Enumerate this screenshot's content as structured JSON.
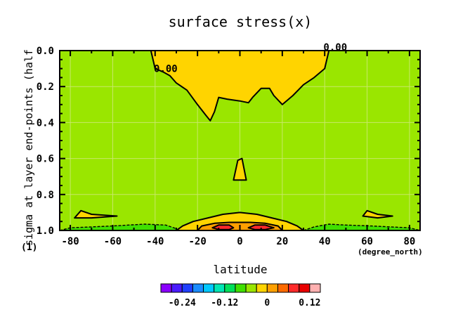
{
  "chart_data": {
    "type": "contour",
    "title": "surface stress(x)",
    "xlabel": "latitude",
    "x_units": "(degree_north)",
    "ylabel": "sigma at layer end-points (half",
    "y_units": "(1)",
    "xlim": [
      -85,
      85
    ],
    "ylim": [
      1.0,
      0.0
    ],
    "x_ticks": [
      -80,
      -60,
      -40,
      -20,
      0,
      20,
      40,
      60,
      80
    ],
    "y_ticks": [
      0.0,
      0.2,
      0.4,
      0.6,
      0.8,
      1.0
    ],
    "y_tick_labels": [
      "0.0",
      "0.2",
      "0.4",
      "0.6",
      "0.8",
      "1.0"
    ],
    "contour_labels": [
      {
        "text": "0.00",
        "x": -35,
        "y": 0.12
      },
      {
        "text": "0.00",
        "x": 45,
        "y": 0.0
      }
    ],
    "colorbar": {
      "tick_values": [
        -0.24,
        -0.12,
        0,
        0.12
      ],
      "tick_labels": [
        "-0.24",
        "-0.12",
        "0",
        "0.12"
      ],
      "colors": [
        "#8a00ff",
        "#4a1bff",
        "#2040ff",
        "#1a8cff",
        "#00c8ff",
        "#00e6b4",
        "#00e05a",
        "#40e000",
        "#9ae600",
        "#ffd400",
        "#ffa000",
        "#ff6a00",
        "#ff2a2a",
        "#e80000",
        "#ffb0b0"
      ]
    },
    "colors": {
      "background": "#9ae600",
      "positive_small": "#ffd400",
      "positive_mid": "#ffa000",
      "positive_high": "#ff2a2a",
      "negative_small": "#40e000"
    },
    "regions": [
      {
        "level": "0 to 0.02",
        "color": "#ffd400",
        "points": [
          [
            -42,
            0
          ],
          [
            -40,
            0.1
          ],
          [
            -36,
            0.12
          ],
          [
            -33,
            0.14
          ],
          [
            -30,
            0.18
          ],
          [
            -25,
            0.22
          ],
          [
            -20,
            0.3
          ],
          [
            -16,
            0.36
          ],
          [
            -14,
            0.39
          ],
          [
            -12,
            0.34
          ],
          [
            -10,
            0.26
          ],
          [
            -6,
            0.27
          ],
          [
            0,
            0.28
          ],
          [
            4,
            0.29
          ],
          [
            6,
            0.26
          ],
          [
            10,
            0.21
          ],
          [
            14,
            0.21
          ],
          [
            16,
            0.25
          ],
          [
            20,
            0.3
          ],
          [
            25,
            0.25
          ],
          [
            30,
            0.19
          ],
          [
            35,
            0.15
          ],
          [
            40,
            0.1
          ],
          [
            42,
            0.0
          ]
        ]
      },
      {
        "level": "0 to 0.02",
        "color": "#ffd400",
        "points": [
          [
            -3,
            0.72
          ],
          [
            -1,
            0.61
          ],
          [
            1,
            0.6
          ],
          [
            3,
            0.72
          ]
        ]
      },
      {
        "level": "0 to 0.02",
        "color": "#ffd400",
        "points": [
          [
            -30,
            1.0
          ],
          [
            -27,
            0.975
          ],
          [
            -22,
            0.95
          ],
          [
            -15,
            0.93
          ],
          [
            -8,
            0.91
          ],
          [
            0,
            0.9
          ],
          [
            8,
            0.91
          ],
          [
            15,
            0.93
          ],
          [
            22,
            0.95
          ],
          [
            27,
            0.975
          ],
          [
            30,
            1.0
          ]
        ]
      },
      {
        "level": "0.04 to 0.06",
        "color": "#ffa000",
        "points": [
          [
            -20,
            1.0
          ],
          [
            -18,
            0.975
          ],
          [
            -12,
            0.96
          ],
          [
            -5,
            0.955
          ],
          [
            0,
            0.955
          ],
          [
            5,
            0.955
          ],
          [
            12,
            0.96
          ],
          [
            18,
            0.975
          ],
          [
            20,
            1.0
          ]
        ]
      },
      {
        "level": "0.08 to 0.10",
        "color": "#ff2a2a",
        "points": [
          [
            -13,
            0.985
          ],
          [
            -10,
            0.97
          ],
          [
            -5,
            0.97
          ],
          [
            -3,
            0.985
          ],
          [
            -5,
            0.995
          ],
          [
            -10,
            0.995
          ]
        ]
      },
      {
        "level": "0.08 to 0.10",
        "color": "#ff2a2a",
        "points": [
          [
            4,
            0.985
          ],
          [
            7,
            0.97
          ],
          [
            12,
            0.97
          ],
          [
            16,
            0.985
          ],
          [
            12,
            0.995
          ],
          [
            7,
            0.995
          ]
        ]
      },
      {
        "level": "0 to 0.02",
        "color": "#ffd400",
        "points": [
          [
            -78,
            0.93
          ],
          [
            -75,
            0.89
          ],
          [
            -70,
            0.91
          ],
          [
            -58,
            0.92
          ],
          [
            -70,
            0.93
          ]
        ]
      },
      {
        "level": "0 to 0.02",
        "color": "#ffd400",
        "points": [
          [
            58,
            0.92
          ],
          [
            60,
            0.89
          ],
          [
            65,
            0.91
          ],
          [
            72,
            0.92
          ],
          [
            65,
            0.93
          ]
        ]
      },
      {
        "level": "-0.02 to 0",
        "color": "#40e000",
        "points": [
          [
            -85,
            1.0
          ],
          [
            -80,
            0.985
          ],
          [
            -60,
            0.975
          ],
          [
            -45,
            0.965
          ],
          [
            -35,
            0.97
          ],
          [
            -30,
            0.99
          ],
          [
            -30,
            1.0
          ]
        ]
      },
      {
        "level": "-0.02 to 0",
        "color": "#40e000",
        "points": [
          [
            30,
            1.0
          ],
          [
            35,
            0.98
          ],
          [
            42,
            0.965
          ],
          [
            50,
            0.97
          ],
          [
            62,
            0.975
          ],
          [
            80,
            0.985
          ],
          [
            85,
            1.0
          ]
        ]
      }
    ]
  }
}
